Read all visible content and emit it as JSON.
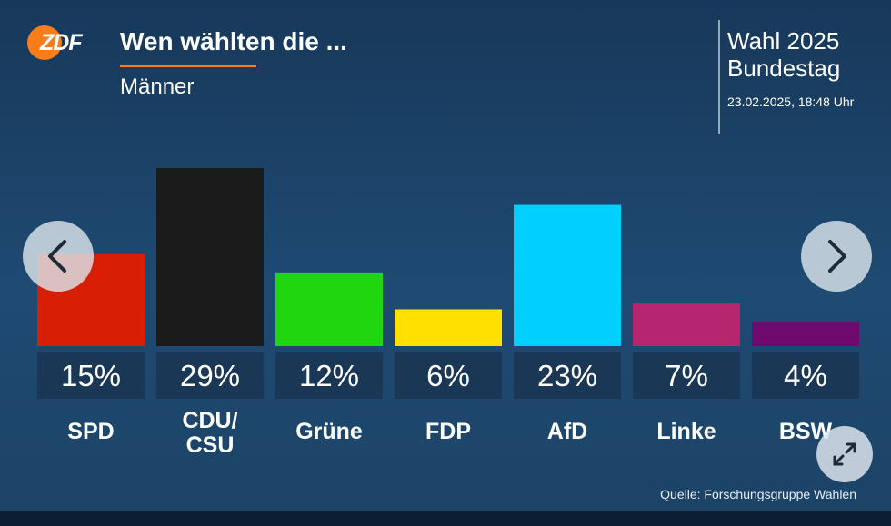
{
  "header": {
    "logo_text": "ZDF",
    "title": "Wen wählten die ...",
    "subtitle": "Männer",
    "election_name": "Wahl 2025\nBundestag",
    "timestamp": "23.02.2025, 18:48 Uhr"
  },
  "footer": {
    "source": "Quelle: Forschungsgruppe Wahlen"
  },
  "controls": {
    "prev_icon": "chevron-left-icon",
    "next_icon": "chevron-right-icon",
    "expand_icon": "expand-arrows-icon"
  },
  "chart_data": {
    "type": "bar",
    "title": "Wen wählten die ...",
    "subtitle": "Männer",
    "categories": [
      "SPD",
      "CDU/\nCSU",
      "Grüne",
      "FDP",
      "AfD",
      "Linke",
      "BSW"
    ],
    "values": [
      15,
      29,
      12,
      6,
      23,
      7,
      4
    ],
    "value_labels": [
      "15%",
      "29%",
      "12%",
      "6%",
      "23%",
      "7%",
      "4%"
    ],
    "colors": [
      "#d81e05",
      "#1b1b1b",
      "#1fd60f",
      "#ffe000",
      "#00cfff",
      "#b5266e",
      "#6e0a6e"
    ],
    "unit": "%",
    "ylim": [
      0,
      29
    ],
    "grid": false,
    "legend": "none"
  }
}
